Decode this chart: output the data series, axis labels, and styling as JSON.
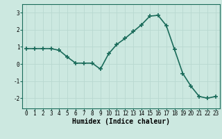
{
  "x": [
    0,
    1,
    2,
    3,
    4,
    5,
    6,
    7,
    8,
    9,
    10,
    11,
    12,
    13,
    14,
    15,
    16,
    17,
    18,
    19,
    20,
    21,
    22,
    23
  ],
  "y": [
    0.9,
    0.9,
    0.9,
    0.9,
    0.8,
    0.4,
    0.05,
    0.05,
    0.05,
    -0.3,
    0.6,
    1.15,
    1.5,
    1.9,
    2.3,
    2.8,
    2.85,
    2.25,
    0.85,
    -0.55,
    -1.3,
    -1.9,
    -2.0,
    -1.9
  ],
  "line_color": "#1a6b5a",
  "marker": "+",
  "markersize": 4,
  "linewidth": 1.2,
  "xlabel": "Humidex (Indice chaleur)",
  "xlabel_fontsize": 7,
  "xlabel_fontweight": "bold",
  "xlim": [
    -0.5,
    23.5
  ],
  "ylim": [
    -2.6,
    3.5
  ],
  "yticks": [
    -2,
    -1,
    0,
    1,
    2,
    3
  ],
  "xticks": [
    0,
    1,
    2,
    3,
    4,
    5,
    6,
    7,
    8,
    9,
    10,
    11,
    12,
    13,
    14,
    15,
    16,
    17,
    18,
    19,
    20,
    21,
    22,
    23
  ],
  "grid_color": "#b8d8d0",
  "bg_color": "#cce8e0",
  "tick_fontsize": 5.5,
  "spine_color": "#1a6b5a"
}
